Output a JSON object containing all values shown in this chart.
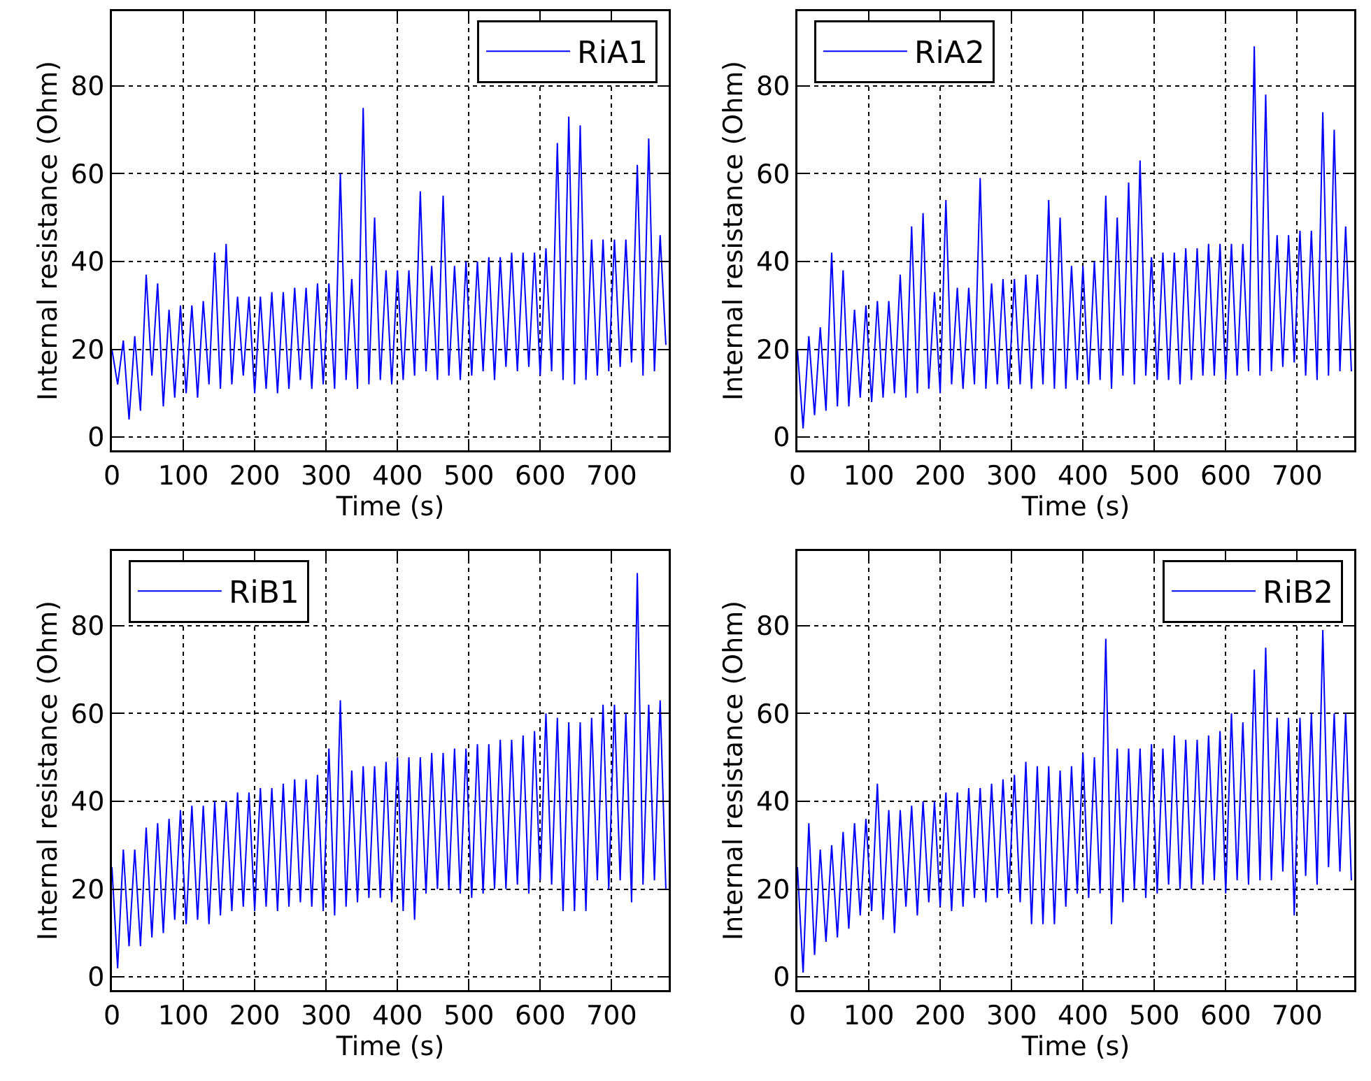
{
  "chart_data": [
    {
      "type": "line",
      "xlabel": "Time (s)",
      "ylabel": "Internal resistance (Ohm)",
      "xlim": [
        0,
        780
      ],
      "ylim": [
        -3,
        97
      ],
      "xticks": [
        0,
        100,
        200,
        300,
        400,
        500,
        600,
        700
      ],
      "yticks": [
        0,
        20,
        40,
        60,
        80
      ],
      "grid": true,
      "legend": "top right",
      "x": [
        0,
        8,
        16,
        24,
        32,
        40,
        48,
        56,
        64,
        72,
        80,
        88,
        96,
        104,
        112,
        120,
        128,
        136,
        144,
        152,
        160,
        168,
        176,
        184,
        192,
        200,
        208,
        216,
        224,
        232,
        240,
        248,
        256,
        264,
        272,
        280,
        288,
        296,
        304,
        312,
        320,
        328,
        336,
        344,
        352,
        360,
        368,
        376,
        384,
        392,
        400,
        408,
        416,
        424,
        432,
        440,
        448,
        456,
        464,
        472,
        480,
        488,
        496,
        504,
        512,
        520,
        528,
        536,
        544,
        552,
        560,
        568,
        576,
        584,
        592,
        600,
        608,
        616,
        624,
        632,
        640,
        648,
        656,
        664,
        672,
        680,
        688,
        696,
        704,
        712,
        720,
        728,
        736,
        744,
        752,
        760,
        768,
        776
      ],
      "series": [
        {
          "name": "RiA1",
          "color": "#0000ff",
          "values": [
            20,
            12,
            22,
            4,
            23,
            6,
            37,
            14,
            35,
            7,
            29,
            9,
            30,
            10,
            30,
            9,
            31,
            12,
            42,
            11,
            44,
            12,
            32,
            14,
            32,
            10,
            32,
            11,
            33,
            10,
            33,
            11,
            34,
            13,
            34,
            11,
            35,
            12,
            35,
            11,
            60,
            13,
            36,
            11,
            75,
            12,
            50,
            13,
            38,
            12,
            38,
            13,
            38,
            14,
            56,
            15,
            39,
            13,
            55,
            14,
            39,
            13,
            40,
            14,
            40,
            15,
            41,
            13,
            41,
            16,
            42,
            15,
            42,
            16,
            42,
            14,
            43,
            15,
            67,
            13,
            73,
            12,
            71,
            13,
            45,
            14,
            45,
            15,
            45,
            16,
            45,
            17,
            62,
            14,
            68,
            15,
            46,
            21
          ]
        }
      ]
    },
    {
      "type": "line",
      "xlabel": "Time (s)",
      "ylabel": "Internal resistance (Ohm)",
      "xlim": [
        0,
        780
      ],
      "ylim": [
        -3,
        97
      ],
      "xticks": [
        0,
        100,
        200,
        300,
        400,
        500,
        600,
        700
      ],
      "yticks": [
        0,
        20,
        40,
        60,
        80
      ],
      "grid": true,
      "legend": "top left",
      "x": [
        0,
        8,
        16,
        24,
        32,
        40,
        48,
        56,
        64,
        72,
        80,
        88,
        96,
        104,
        112,
        120,
        128,
        136,
        144,
        152,
        160,
        168,
        176,
        184,
        192,
        200,
        208,
        216,
        224,
        232,
        240,
        248,
        256,
        264,
        272,
        280,
        288,
        296,
        304,
        312,
        320,
        328,
        336,
        344,
        352,
        360,
        368,
        376,
        384,
        392,
        400,
        408,
        416,
        424,
        432,
        440,
        448,
        456,
        464,
        472,
        480,
        488,
        496,
        504,
        512,
        520,
        528,
        536,
        544,
        552,
        560,
        568,
        576,
        584,
        592,
        600,
        608,
        616,
        624,
        632,
        640,
        648,
        656,
        664,
        672,
        680,
        688,
        696,
        704,
        712,
        720,
        728,
        736,
        744,
        752,
        760,
        768,
        776
      ],
      "series": [
        {
          "name": "RiA2",
          "color": "#0000ff",
          "values": [
            20,
            2,
            23,
            5,
            25,
            6,
            42,
            7,
            38,
            7,
            29,
            9,
            30,
            8,
            31,
            9,
            31,
            10,
            37,
            9,
            48,
            10,
            51,
            11,
            33,
            10,
            54,
            12,
            34,
            11,
            34,
            12,
            59,
            11,
            35,
            12,
            36,
            11,
            36,
            12,
            37,
            11,
            37,
            12,
            54,
            11,
            50,
            11,
            39,
            13,
            39,
            12,
            40,
            13,
            55,
            11,
            50,
            14,
            58,
            12,
            63,
            14,
            41,
            13,
            42,
            13,
            42,
            12,
            43,
            13,
            43,
            14,
            44,
            14,
            44,
            13,
            44,
            14,
            44,
            15,
            89,
            14,
            78,
            15,
            46,
            16,
            46,
            17,
            47,
            14,
            47,
            13,
            74,
            14,
            70,
            15,
            48,
            15
          ]
        }
      ]
    },
    {
      "type": "line",
      "xlabel": "Time (s)",
      "ylabel": "Internal resistance (Ohm)",
      "xlim": [
        0,
        780
      ],
      "ylim": [
        -3,
        97
      ],
      "xticks": [
        0,
        100,
        200,
        300,
        400,
        500,
        600,
        700
      ],
      "yticks": [
        0,
        20,
        40,
        60,
        80
      ],
      "grid": true,
      "legend": "top left",
      "x": [
        0,
        8,
        16,
        24,
        32,
        40,
        48,
        56,
        64,
        72,
        80,
        88,
        96,
        104,
        112,
        120,
        128,
        136,
        144,
        152,
        160,
        168,
        176,
        184,
        192,
        200,
        208,
        216,
        224,
        232,
        240,
        248,
        256,
        264,
        272,
        280,
        288,
        296,
        304,
        312,
        320,
        328,
        336,
        344,
        352,
        360,
        368,
        376,
        384,
        392,
        400,
        408,
        416,
        424,
        432,
        440,
        448,
        456,
        464,
        472,
        480,
        488,
        496,
        504,
        512,
        520,
        528,
        536,
        544,
        552,
        560,
        568,
        576,
        584,
        592,
        600,
        608,
        616,
        624,
        632,
        640,
        648,
        656,
        664,
        672,
        680,
        688,
        696,
        704,
        712,
        720,
        728,
        736,
        744,
        752,
        760,
        768,
        776
      ],
      "series": [
        {
          "name": "RiB1",
          "color": "#0000ff",
          "values": [
            25,
            2,
            29,
            7,
            29,
            7,
            34,
            9,
            35,
            10,
            36,
            13,
            38,
            12,
            39,
            13,
            39,
            12,
            40,
            14,
            40,
            15,
            42,
            16,
            42,
            15,
            43,
            16,
            43,
            15,
            44,
            16,
            45,
            17,
            45,
            16,
            46,
            15,
            52,
            14,
            63,
            16,
            47,
            17,
            48,
            18,
            48,
            18,
            49,
            17,
            50,
            15,
            50,
            13,
            50,
            19,
            51,
            20,
            51,
            20,
            52,
            19,
            52,
            18,
            53,
            19,
            53,
            20,
            54,
            20,
            54,
            21,
            55,
            19,
            56,
            22,
            60,
            21,
            59,
            15,
            58,
            15,
            58,
            15,
            59,
            22,
            62,
            20,
            62,
            22,
            60,
            17,
            92,
            21,
            62,
            22,
            63,
            20
          ]
        }
      ]
    },
    {
      "type": "line",
      "xlabel": "Time (s)",
      "ylabel": "Internal resistance (Ohm)",
      "xlim": [
        0,
        780
      ],
      "ylim": [
        -3,
        97
      ],
      "xticks": [
        0,
        100,
        200,
        300,
        400,
        500,
        600,
        700
      ],
      "yticks": [
        0,
        20,
        40,
        60,
        80
      ],
      "grid": true,
      "legend": "top right",
      "x": [
        0,
        8,
        16,
        24,
        32,
        40,
        48,
        56,
        64,
        72,
        80,
        88,
        96,
        104,
        112,
        120,
        128,
        136,
        144,
        152,
        160,
        168,
        176,
        184,
        192,
        200,
        208,
        216,
        224,
        232,
        240,
        248,
        256,
        264,
        272,
        280,
        288,
        296,
        304,
        312,
        320,
        328,
        336,
        344,
        352,
        360,
        368,
        376,
        384,
        392,
        400,
        408,
        416,
        424,
        432,
        440,
        448,
        456,
        464,
        472,
        480,
        488,
        496,
        504,
        512,
        520,
        528,
        536,
        544,
        552,
        560,
        568,
        576,
        584,
        592,
        600,
        608,
        616,
        624,
        632,
        640,
        648,
        656,
        664,
        672,
        680,
        688,
        696,
        704,
        712,
        720,
        728,
        736,
        744,
        752,
        760,
        768,
        776
      ],
      "series": [
        {
          "name": "RiB2",
          "color": "#0000ff",
          "values": [
            25,
            1,
            35,
            5,
            29,
            8,
            30,
            9,
            33,
            11,
            35,
            14,
            36,
            15,
            44,
            13,
            38,
            10,
            38,
            16,
            39,
            14,
            40,
            17,
            40,
            16,
            42,
            15,
            42,
            16,
            43,
            18,
            43,
            17,
            44,
            18,
            45,
            19,
            46,
            17,
            49,
            12,
            48,
            12,
            48,
            12,
            47,
            16,
            48,
            19,
            51,
            18,
            50,
            19,
            77,
            12,
            52,
            17,
            52,
            20,
            52,
            18,
            53,
            19,
            52,
            21,
            55,
            20,
            54,
            20,
            54,
            21,
            55,
            22,
            56,
            19,
            60,
            22,
            58,
            21,
            70,
            22,
            75,
            22,
            59,
            24,
            59,
            14,
            59,
            23,
            60,
            21,
            79,
            25,
            60,
            24,
            60,
            22
          ]
        }
      ]
    }
  ]
}
